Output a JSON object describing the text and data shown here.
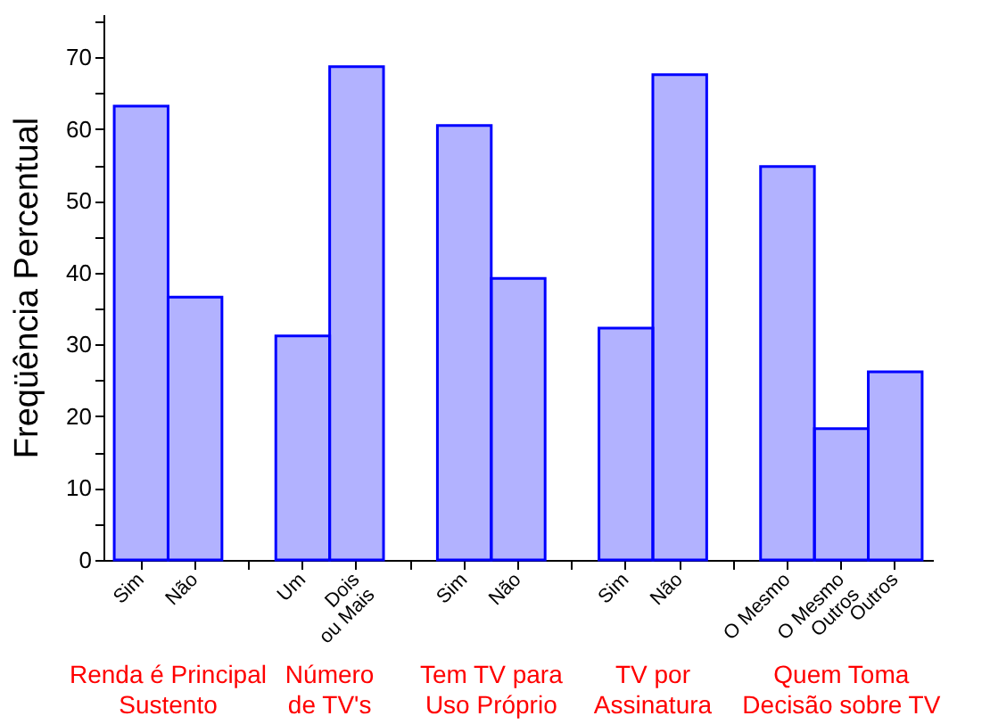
{
  "chart_data": {
    "type": "bar",
    "ylabel": "Freqüência Percentual",
    "categories": [
      "Sim",
      "Não",
      null,
      "Um",
      "Dois\nou Mais",
      null,
      "Sim",
      "Não",
      null,
      "Sim",
      "Não",
      null,
      "O Mesmo",
      "O Mesmo\nOutros",
      "Outros"
    ],
    "values": [
      63.2,
      36.6,
      null,
      31.2,
      68.7,
      null,
      60.5,
      39.2,
      null,
      32.3,
      67.6,
      null,
      54.8,
      18.3,
      26.2
    ],
    "color": "#0000ff",
    "ylim": [
      0,
      76
    ],
    "yticks": [
      0,
      {
        "value": 5,
        "label": null
      },
      10,
      {
        "value": 15,
        "label": null
      },
      20,
      {
        "value": 25,
        "label": null
      },
      30,
      {
        "value": 35,
        "label": null
      },
      40,
      {
        "value": 45,
        "label": null
      },
      50,
      {
        "value": 55,
        "label": null
      },
      60,
      {
        "value": 65,
        "label": null
      },
      70,
      {
        "value": 75,
        "label": null
      }
    ],
    "annotations": [
      "Renda é Principal\nSustento",
      "Número\nde TV's",
      "Tem TV para\nUso Próprio",
      "TV por\nAssinatura",
      "Quem Toma\nDecisão sobre TV"
    ],
    "grid": false
  }
}
